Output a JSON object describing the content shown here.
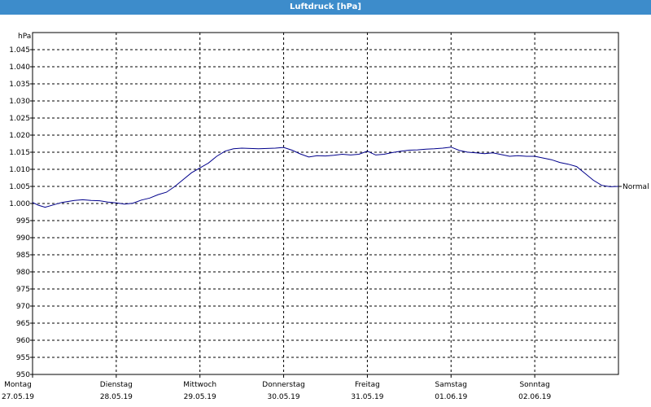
{
  "window": {
    "title": "Luftdruck [hPa]"
  },
  "chart_data": {
    "type": "line",
    "title": "Luftdruck [hPa]",
    "ylabel": "hPa",
    "xlabel": "",
    "ylim": [
      950,
      1050
    ],
    "yticks": [
      "1.045",
      "1.040",
      "1.035",
      "1.030",
      "1.025",
      "1.020",
      "1.015",
      "1.010",
      "1.005",
      "1.000",
      "995",
      "990",
      "985",
      "980",
      "975",
      "970",
      "965",
      "960",
      "955",
      "950"
    ],
    "xlim": [
      0,
      7
    ],
    "days": [
      {
        "name": "Montag",
        "date": "27.05.19"
      },
      {
        "name": "Dienstag",
        "date": "28.05.19"
      },
      {
        "name": "Mittwoch",
        "date": "29.05.19"
      },
      {
        "name": "Donnerstag",
        "date": "30.05.19"
      },
      {
        "name": "Freitag",
        "date": "31.05.19"
      },
      {
        "name": "Samstag",
        "date": "01.06.19"
      },
      {
        "name": "Sonntag",
        "date": "02.06.19"
      }
    ],
    "reference_line": {
      "label": "Normal",
      "value": 1005
    },
    "grid": true,
    "series": [
      {
        "color": "#00008b",
        "x": [
          0,
          0.07,
          0.15,
          0.25,
          0.35,
          0.5,
          0.6,
          0.7,
          0.8,
          0.9,
          1.0,
          1.1,
          1.2,
          1.3,
          1.4,
          1.5,
          1.6,
          1.7,
          1.8,
          1.9,
          2.0,
          2.1,
          2.2,
          2.3,
          2.4,
          2.5,
          2.6,
          2.7,
          2.8,
          2.9,
          3.0,
          3.1,
          3.2,
          3.3,
          3.4,
          3.5,
          3.6,
          3.7,
          3.8,
          3.9,
          4.0,
          4.1,
          4.2,
          4.3,
          4.4,
          4.5,
          4.6,
          4.7,
          4.8,
          4.9,
          5.0,
          5.1,
          5.2,
          5.3,
          5.4,
          5.5,
          5.6,
          5.7,
          5.8,
          5.9,
          6.0,
          6.1,
          6.2,
          6.3,
          6.4,
          6.5,
          6.6,
          6.7,
          6.8,
          6.9,
          7.0
        ],
        "values": [
          1000.3,
          999.5,
          998.9,
          999.6,
          1000.3,
          1000.9,
          1001.1,
          1000.9,
          1000.8,
          1000.4,
          1000.2,
          999.8,
          1000.1,
          1001.0,
          1001.6,
          1002.6,
          1003.3,
          1005.0,
          1007.0,
          1009.0,
          1010.4,
          1011.8,
          1013.8,
          1015.3,
          1016.0,
          1016.2,
          1016.1,
          1016.0,
          1016.1,
          1016.2,
          1016.4,
          1015.6,
          1014.5,
          1013.6,
          1014.0,
          1013.9,
          1014.1,
          1014.4,
          1014.2,
          1014.4,
          1015.3,
          1014.2,
          1014.4,
          1014.9,
          1015.3,
          1015.6,
          1015.7,
          1015.9,
          1016.0,
          1016.2,
          1016.5,
          1015.5,
          1015.0,
          1014.8,
          1014.6,
          1014.8,
          1014.3,
          1013.8,
          1014.0,
          1013.8,
          1013.8,
          1013.3,
          1012.8,
          1012.0,
          1011.5,
          1010.8,
          1008.8,
          1006.8,
          1005.3,
          1004.9,
          1005.0
        ]
      }
    ]
  }
}
